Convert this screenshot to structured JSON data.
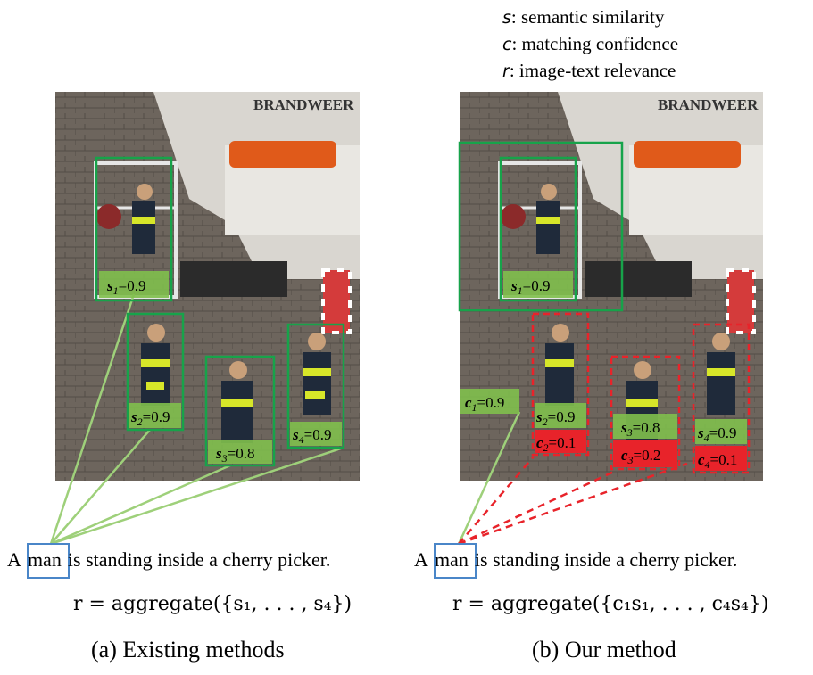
{
  "legend": [
    {
      "symbol": "s",
      "text": ": semantic similarity"
    },
    {
      "symbol": "c",
      "text": ": matching confidence"
    },
    {
      "symbol": "r",
      "text": ": image-text relevance"
    }
  ],
  "truck_text": "BRANDWEER",
  "left_panel": {
    "scores": [
      "=0.9",
      "=0.9",
      "=0.8",
      "=0.9"
    ],
    "caption_pre": "A",
    "caption_word": "man",
    "caption_post": "is standing inside a cherry picker.",
    "formula": "r = aggregate({s₁, . . . , s₄})",
    "label": "(a) Existing methods"
  },
  "right_panel": {
    "sim_scores": [
      "=0.9",
      "=0.9",
      "=0.8",
      "=0.9"
    ],
    "conf_scores": [
      "=0.9",
      "=0.1",
      "=0.2",
      "=0.1"
    ],
    "caption_pre": "A",
    "caption_word": "man",
    "caption_post": "is standing inside a cherry picker.",
    "formula": "r = aggregate({c₁s₁, . . . , c₄s₄})",
    "label": "(b) Our method"
  },
  "colors": {
    "green": "#17a34a",
    "green_fill": "#7fbf4d",
    "red": "#e8232a",
    "blue": "#4a86c8",
    "line_green": "#9ed07a"
  }
}
